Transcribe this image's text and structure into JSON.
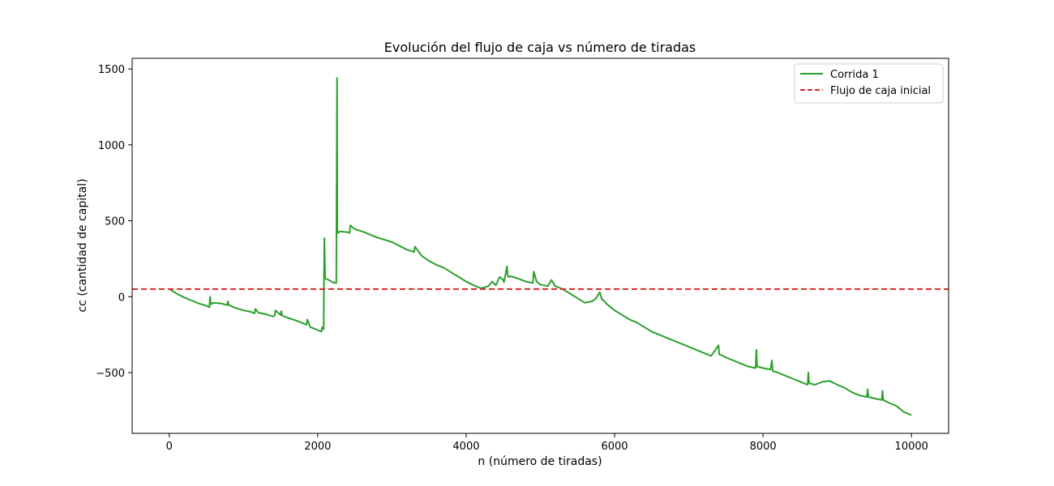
{
  "chart_data": {
    "type": "line",
    "title": "Evolución del flujo de caja vs número de tiradas",
    "xlabel": "n (número de tiradas)",
    "ylabel": "cc (cantidad de capital)",
    "xlim": [
      -500,
      10500
    ],
    "ylim": [
      -900,
      1570
    ],
    "xticks": [
      0,
      2000,
      4000,
      6000,
      8000,
      10000
    ],
    "xtick_labels": [
      "0",
      "2000",
      "4000",
      "6000",
      "8000",
      "10000"
    ],
    "yticks": [
      -500,
      0,
      500,
      1000,
      1500
    ],
    "ytick_labels": [
      "−500",
      "0",
      "500",
      "1000",
      "1500"
    ],
    "grid": false,
    "legend_position": "top-right",
    "series": [
      {
        "name": "Corrida 1",
        "color": "#2ca02c",
        "style": "solid",
        "x": [
          0,
          100,
          200,
          300,
          400,
          500,
          540,
          550,
          560,
          600,
          700,
          780,
          790,
          800,
          900,
          1000,
          1100,
          1150,
          1160,
          1200,
          1300,
          1400,
          1420,
          1430,
          1500,
          1510,
          1520,
          1600,
          1700,
          1800,
          1850,
          1860,
          1900,
          2000,
          2050,
          2060,
          2080,
          2085,
          2090,
          2100,
          2150,
          2200,
          2250,
          2260,
          2265,
          2270,
          2300,
          2400,
          2430,
          2440,
          2500,
          2600,
          2700,
          2800,
          2900,
          3000,
          3100,
          3200,
          3300,
          3310,
          3400,
          3500,
          3600,
          3700,
          3800,
          3900,
          4000,
          4100,
          4200,
          4300,
          4350,
          4400,
          4450,
          4500,
          4510,
          4550,
          4560,
          4570,
          4600,
          4700,
          4800,
          4850,
          4900,
          4910,
          4950,
          5000,
          5100,
          5150,
          5200,
          5300,
          5400,
          5500,
          5600,
          5700,
          5750,
          5800,
          5830,
          5840,
          5900,
          6000,
          6100,
          6200,
          6300,
          6400,
          6500,
          6600,
          6700,
          6800,
          6900,
          7000,
          7100,
          7200,
          7300,
          7400,
          7410,
          7420,
          7500,
          7600,
          7700,
          7800,
          7900,
          7910,
          7920,
          8000,
          8100,
          8120,
          8130,
          8200,
          8300,
          8400,
          8500,
          8600,
          8610,
          8620,
          8700,
          8800,
          8900,
          9000,
          9100,
          9200,
          9300,
          9400,
          9410,
          9420,
          9500,
          9600,
          9610,
          9620,
          9700,
          9800,
          9900,
          10000
        ],
        "y": [
          50,
          20,
          -5,
          -25,
          -45,
          -60,
          -70,
          0,
          -50,
          -40,
          -45,
          -55,
          -30,
          -55,
          -75,
          -90,
          -100,
          -110,
          -80,
          -105,
          -115,
          -130,
          -125,
          -90,
          -120,
          -95,
          -125,
          -140,
          -155,
          -175,
          -185,
          -150,
          -200,
          -220,
          -230,
          -200,
          -215,
          100,
          385,
          120,
          110,
          95,
          90,
          1440,
          430,
          420,
          430,
          425,
          420,
          470,
          445,
          430,
          410,
          390,
          375,
          360,
          335,
          310,
          295,
          330,
          270,
          235,
          210,
          190,
          160,
          130,
          100,
          75,
          55,
          70,
          100,
          75,
          130,
          110,
          95,
          200,
          140,
          130,
          135,
          120,
          100,
          95,
          90,
          165,
          100,
          80,
          70,
          110,
          70,
          50,
          20,
          -10,
          -40,
          -30,
          -10,
          30,
          -20,
          -20,
          -50,
          -90,
          -120,
          -150,
          -170,
          -200,
          -230,
          -250,
          -270,
          -290,
          -310,
          -330,
          -350,
          -370,
          -390,
          -320,
          -380,
          -380,
          -400,
          -420,
          -440,
          -460,
          -470,
          -350,
          -460,
          -470,
          -480,
          -420,
          -490,
          -500,
          -520,
          -540,
          -560,
          -580,
          -500,
          -570,
          -580,
          -560,
          -555,
          -580,
          -600,
          -630,
          -650,
          -660,
          -610,
          -660,
          -670,
          -680,
          -620,
          -680,
          -700,
          -720,
          -760,
          -780
        ]
      },
      {
        "name": "Flujo de caja inicial",
        "color": "#d62728",
        "style": "dashed",
        "hline": 50
      }
    ]
  }
}
